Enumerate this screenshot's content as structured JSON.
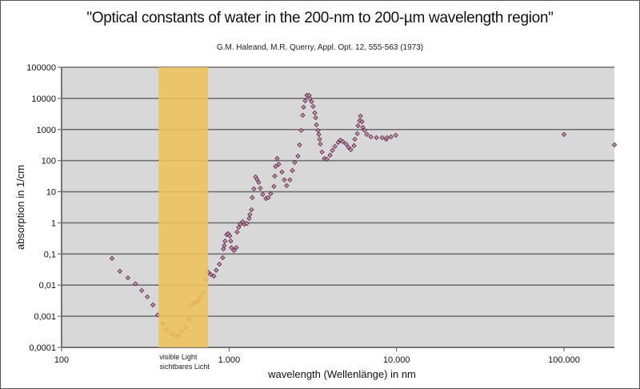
{
  "chart_data": {
    "type": "scatter",
    "title": "\"Optical constants of water in the 200-nm to 200-µm wavelength region\"",
    "subtitle": "G.M. Haleand, M.R. Querry, Appl. Opt. 12, 555-563 (1973)",
    "xlabel": "wavelength (Wellenlänge) in nm",
    "ylabel": "absorption in 1/cm",
    "xscale": "log",
    "yscale": "log",
    "xlim": [
      100,
      200000
    ],
    "ylim": [
      0.0001,
      100000
    ],
    "x_ticks": [
      {
        "value": 100,
        "label": "100"
      },
      {
        "value": 1000,
        "label": "1.000"
      },
      {
        "value": 10000,
        "label": "10.000"
      },
      {
        "value": 100000,
        "label": "100.000"
      }
    ],
    "y_ticks": [
      {
        "value": 0.0001,
        "label": "0,0001"
      },
      {
        "value": 0.001,
        "label": "0,001"
      },
      {
        "value": 0.01,
        "label": "0,01"
      },
      {
        "value": 0.1,
        "label": "0,1"
      },
      {
        "value": 1,
        "label": "1"
      },
      {
        "value": 10,
        "label": "10"
      },
      {
        "value": 100,
        "label": "100"
      },
      {
        "value": 1000,
        "label": "1000"
      },
      {
        "value": 10000,
        "label": "10000"
      },
      {
        "value": 100000,
        "label": "100000"
      }
    ],
    "grid": "horizontal",
    "highlight_band": {
      "x_range": [
        380,
        750
      ],
      "label_lines": [
        "visible Light",
        "sichtbares Licht"
      ],
      "color": "#EEC25A"
    },
    "colors": {
      "plot_background": "#D8D8D8",
      "gridline": "#707070",
      "marker_fill": "#C78FB0",
      "marker_stroke": "#5A2A45"
    },
    "series": [
      {
        "name": "absorption",
        "marker": "diamond",
        "x": [
          200,
          223,
          249,
          276,
          301,
          325,
          351,
          375,
          401,
          424,
          453,
          478,
          500,
          522,
          552,
          577,
          596,
          623,
          650,
          673,
          703,
          727,
          751,
          776,
          811,
          838,
          876,
          916,
          926,
          936,
          946,
          968,
          989,
          1010,
          1023,
          1033,
          1069,
          1105,
          1117,
          1141,
          1166,
          1205,
          1233,
          1274,
          1318,
          1331,
          1361,
          1376,
          1407,
          1439,
          1469,
          1503,
          1537,
          1589,
          1660,
          1715,
          1773,
          1853,
          1875,
          1896,
          1937,
          1982,
          2070,
          2138,
          2209,
          2310,
          2388,
          2467,
          2578,
          2636,
          2697,
          2756,
          2786,
          2850,
          2912,
          3008,
          3041,
          3110,
          3178,
          3250,
          3288,
          3326,
          3398,
          3436,
          3475,
          3510,
          3589,
          3707,
          3837,
          4009,
          4141,
          4285,
          4478,
          4624,
          4779,
          5000,
          5164,
          5336,
          5576,
          5638,
          5833,
          5888,
          6025,
          6095,
          6223,
          6295,
          6442,
          6653,
          7031,
          7590,
          8200,
          8665,
          8770,
          9267,
          9893,
          100000,
          200000
        ],
        "y": [
          0.072,
          0.028,
          0.017,
          0.011,
          0.0067,
          0.0042,
          0.0023,
          0.0011,
          0.00059,
          0.00037,
          0.00028,
          0.00024,
          0.00024,
          0.00033,
          0.00044,
          0.0008,
          0.0023,
          0.0028,
          0.0031,
          0.0042,
          0.006,
          0.015,
          0.026,
          0.022,
          0.0195,
          0.03,
          0.047,
          0.076,
          0.146,
          0.185,
          0.26,
          0.42,
          0.45,
          0.38,
          0.26,
          0.16,
          0.13,
          0.16,
          0.51,
          0.72,
          0.91,
          1.09,
          0.91,
          0.95,
          1.38,
          1.86,
          2.65,
          6.5,
          12.4,
          30,
          25,
          20,
          13,
          8.2,
          6.1,
          6.5,
          8.7,
          14.8,
          32,
          65,
          117,
          77,
          43,
          24,
          15.7,
          24,
          48,
          87,
          140,
          320,
          930,
          2870,
          5190,
          8320,
          12600,
          12600,
          9930,
          7850,
          5500,
          3430,
          2400,
          1410,
          930,
          693,
          485,
          340,
          188,
          117,
          111,
          149,
          212,
          285,
          384,
          458,
          407,
          340,
          269,
          225,
          303,
          485,
          735,
          1330,
          1900,
          2700,
          1790,
          1180,
          930,
          693,
          580,
          547,
          547,
          485,
          547,
          580,
          653,
          693,
          320
        ]
      }
    ]
  }
}
